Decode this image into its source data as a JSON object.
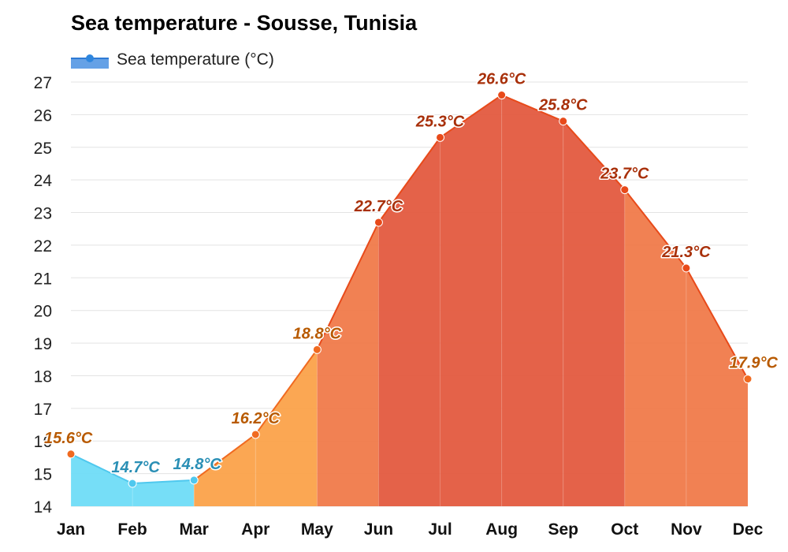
{
  "title": "Sea temperature - Sousse, Tunisia",
  "legend": {
    "label": "Sea temperature (°C)",
    "icon": "line-marker-icon",
    "color": "#2e86de"
  },
  "chart_data": {
    "type": "area",
    "title": "Sea temperature - Sousse, Tunisia",
    "categories": [
      "Jan",
      "Feb",
      "Mar",
      "Apr",
      "May",
      "Jun",
      "Jul",
      "Aug",
      "Sep",
      "Oct",
      "Nov",
      "Dec"
    ],
    "series": [
      {
        "name": "Sea temperature (°C)",
        "values": [
          15.6,
          14.7,
          14.8,
          16.2,
          18.8,
          22.7,
          25.3,
          26.6,
          25.8,
          23.7,
          21.3,
          17.9
        ]
      }
    ],
    "data_labels": [
      "15.6°C",
      "14.7°C",
      "14.8°C",
      "16.2°C",
      "18.8°C",
      "22.7°C",
      "25.3°C",
      "26.6°C",
      "25.8°C",
      "23.7°C",
      "21.3°C",
      "17.9°C"
    ],
    "ylim": [
      14,
      27
    ],
    "yticks": [
      14,
      15,
      16,
      17,
      18,
      19,
      20,
      21,
      22,
      23,
      24,
      25,
      26,
      27
    ],
    "grid": true,
    "legend_position": "top-left",
    "colors": {
      "cold_fill": "#6fdcf7",
      "cold_line": "#4fc8ee",
      "cold_label": "#2a8fb5",
      "warm_low_fill": "#fba24a",
      "warm_mid_fill": "#f07a4a",
      "hot_fill": "#e35a3f",
      "warm_line": "#f06a20",
      "hot_line": "#e84a1a",
      "warm_label": "#b85a00",
      "hot_label": "#a8300a"
    }
  }
}
